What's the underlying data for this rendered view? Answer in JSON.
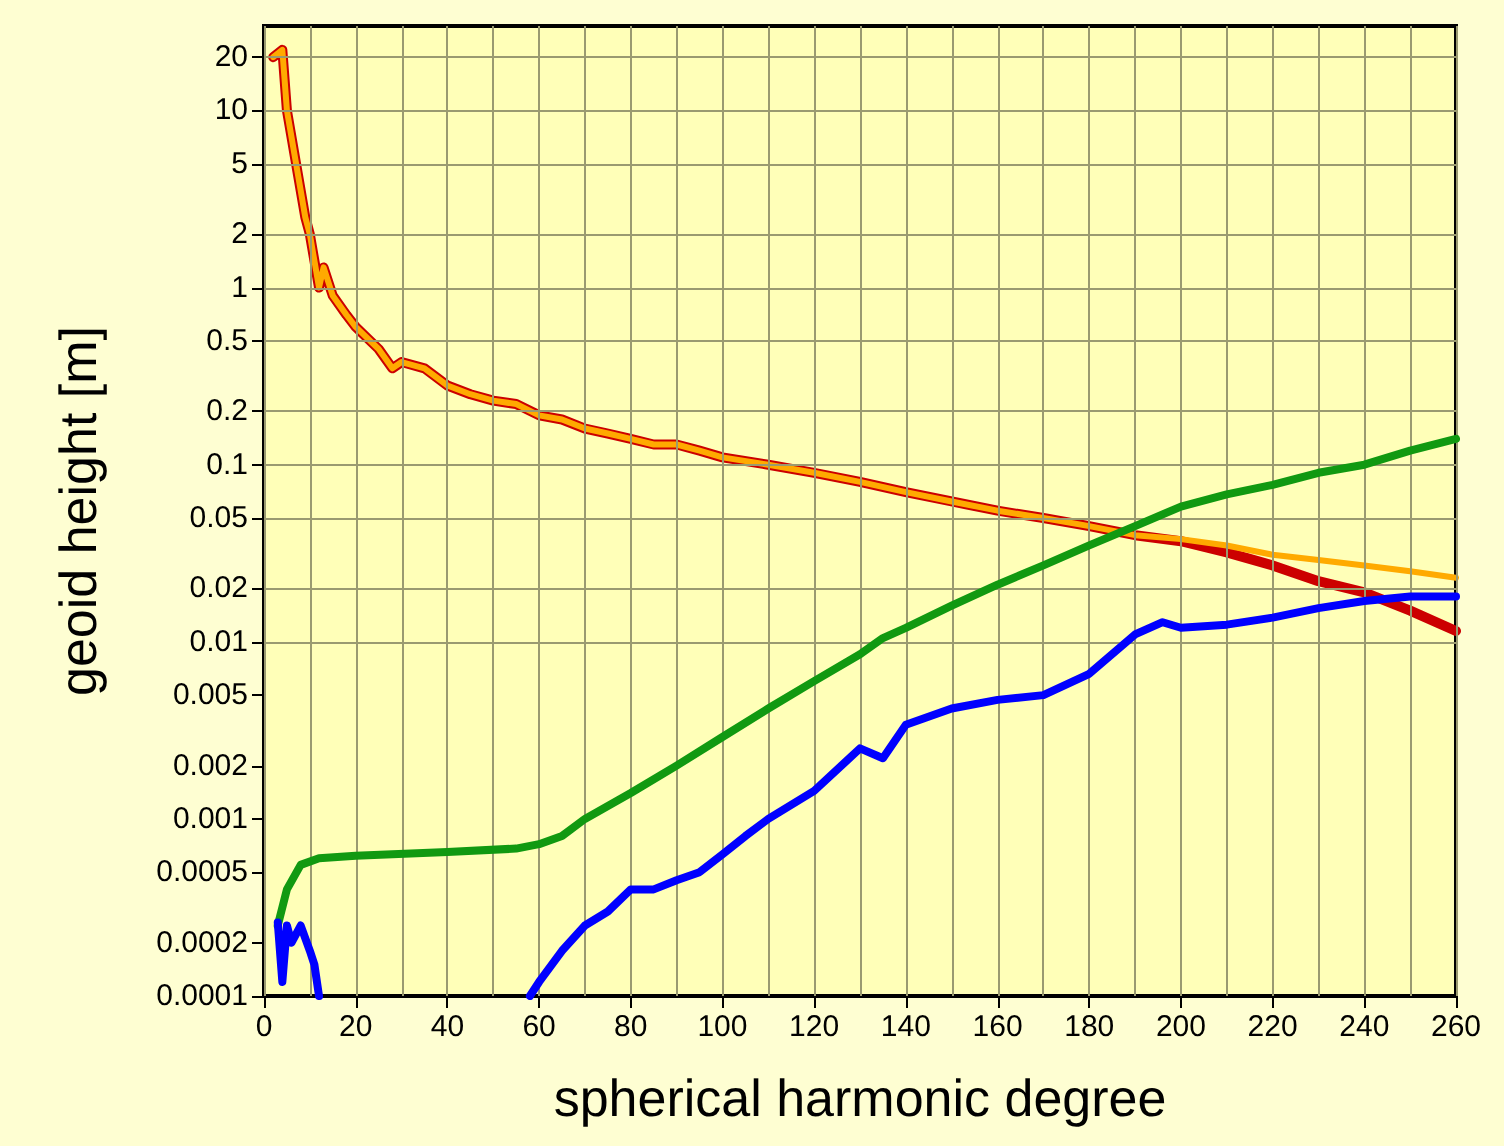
{
  "chart_data": {
    "type": "line",
    "xlabel": "spherical harmonic degree",
    "ylabel": "geoid height [m]",
    "xlim": [
      0,
      260
    ],
    "xticks": [
      0,
      {
        "value": 10,
        "label": null
      },
      20,
      {
        "value": 30,
        "label": null
      },
      40,
      {
        "value": 50,
        "label": null
      },
      60,
      {
        "value": 70,
        "label": null
      },
      80,
      {
        "value": 90,
        "label": null
      },
      100,
      {
        "value": 110,
        "label": null
      },
      120,
      {
        "value": 130,
        "label": null
      },
      140,
      {
        "value": 150,
        "label": null
      },
      160,
      {
        "value": 170,
        "label": null
      },
      180,
      {
        "value": 190,
        "label": null
      },
      200,
      {
        "value": 210,
        "label": null
      },
      220,
      {
        "value": 230,
        "label": null
      },
      240,
      {
        "value": 250,
        "label": null
      },
      260
    ],
    "ylim": [
      0.0001,
      30
    ],
    "yticks": [
      0.0001,
      0.0002,
      0.0005,
      0.001,
      0.002,
      0.005,
      0.01,
      0.02,
      0.05,
      0.1,
      0.2,
      0.5,
      1,
      2,
      5,
      10,
      20
    ],
    "log": "y",
    "grid": true,
    "marker": "none",
    "line_style": "solid",
    "series": [
      {
        "color": "#cc0000",
        "x": [
          2,
          4,
          5,
          7,
          9,
          10,
          12,
          13,
          15,
          18,
          20,
          25,
          28,
          30,
          35,
          40,
          45,
          50,
          55,
          60,
          65,
          70,
          75,
          80,
          85,
          90,
          95,
          100,
          110,
          120,
          130,
          140,
          150,
          160,
          170,
          180,
          190,
          200,
          210,
          220,
          230,
          240,
          250,
          260
        ],
        "values": [
          20,
          22,
          10,
          5,
          2.5,
          2,
          1,
          1.3,
          0.9,
          0.7,
          0.6,
          0.45,
          0.35,
          0.38,
          0.35,
          0.28,
          0.25,
          0.23,
          0.22,
          0.19,
          0.18,
          0.16,
          0.15,
          0.14,
          0.13,
          0.13,
          0.12,
          0.11,
          0.1,
          0.09,
          0.08,
          0.07,
          0.062,
          0.055,
          0.05,
          0.045,
          0.04,
          0.037,
          0.032,
          0.027,
          0.022,
          0.019,
          0.015,
          0.0115
        ]
      },
      {
        "color": "#ffaa00",
        "x": [
          2,
          4,
          5,
          7,
          9,
          10,
          12,
          13,
          15,
          18,
          20,
          25,
          28,
          30,
          35,
          40,
          45,
          50,
          55,
          60,
          65,
          70,
          75,
          80,
          85,
          90,
          95,
          100,
          110,
          120,
          130,
          140,
          150,
          160,
          170,
          180,
          190,
          200,
          210,
          220,
          230,
          240,
          250,
          260
        ],
        "values": [
          20,
          22,
          10,
          5,
          2.5,
          2,
          1,
          1.3,
          0.9,
          0.7,
          0.6,
          0.45,
          0.35,
          0.38,
          0.35,
          0.28,
          0.25,
          0.23,
          0.22,
          0.19,
          0.18,
          0.16,
          0.15,
          0.14,
          0.13,
          0.13,
          0.12,
          0.11,
          0.1,
          0.09,
          0.08,
          0.07,
          0.062,
          0.055,
          0.05,
          0.045,
          0.04,
          0.038,
          0.035,
          0.031,
          0.029,
          0.027,
          0.025,
          0.023
        ]
      },
      {
        "color": "#119911",
        "x": [
          3,
          5,
          8,
          12,
          20,
          40,
          55,
          60,
          65,
          70,
          80,
          90,
          100,
          110,
          120,
          130,
          135,
          140,
          150,
          160,
          170,
          180,
          190,
          200,
          210,
          220,
          230,
          240,
          250,
          260
        ],
        "values": [
          0.00025,
          0.0004,
          0.00055,
          0.0006,
          0.00062,
          0.00065,
          0.00068,
          0.00072,
          0.0008,
          0.001,
          0.0014,
          0.002,
          0.0029,
          0.0042,
          0.006,
          0.0085,
          0.0105,
          0.012,
          0.016,
          0.021,
          0.027,
          0.035,
          0.045,
          0.058,
          0.068,
          0.077,
          0.09,
          0.1,
          0.12,
          0.14
        ]
      },
      {
        "color": "#0000ff",
        "x": [
          3,
          4,
          5,
          6,
          8,
          10,
          11,
          12,
          30,
          58,
          60,
          65,
          70,
          75,
          80,
          85,
          90,
          95,
          100,
          105,
          110,
          120,
          130,
          135,
          140,
          150,
          160,
          170,
          180,
          190,
          196,
          200,
          210,
          220,
          230,
          240,
          250,
          260
        ],
        "values": [
          0.00026,
          0.00012,
          0.00025,
          0.0002,
          0.00025,
          0.00018,
          0.00015,
          0.0001,
          null,
          0.0001,
          0.00012,
          0.00018,
          0.00025,
          0.0003,
          0.0004,
          0.0004,
          0.00045,
          0.0005,
          0.00063,
          0.0008,
          0.001,
          0.00144,
          0.0025,
          0.0022,
          0.0034,
          0.0042,
          0.0047,
          0.005,
          0.0066,
          0.011,
          0.0129,
          0.012,
          0.0125,
          0.0137,
          0.0155,
          0.017,
          0.018,
          0.018
        ]
      }
    ]
  }
}
